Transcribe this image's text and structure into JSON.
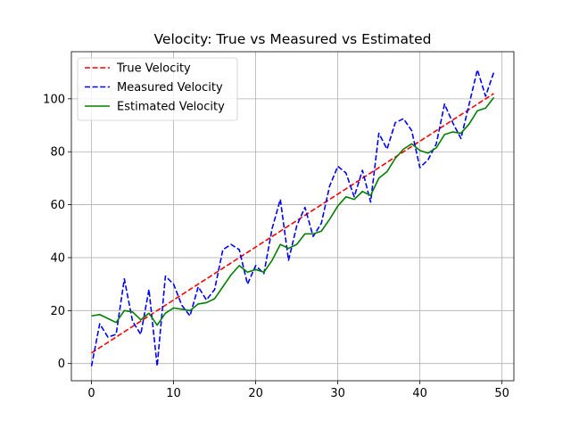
{
  "chart_data": {
    "type": "line",
    "title": "Velocity: True vs Measured vs Estimated",
    "xlabel": "",
    "ylabel": "",
    "xlim": [
      -2.45,
      51.45
    ],
    "ylim": [
      -6.5,
      117.8
    ],
    "x_ticks": [
      0,
      10,
      20,
      30,
      40,
      50
    ],
    "y_ticks": [
      0,
      20,
      40,
      60,
      80,
      100
    ],
    "grid": true,
    "legend_position": "upper-left",
    "x": [
      0,
      1,
      2,
      3,
      4,
      5,
      6,
      7,
      8,
      9,
      10,
      11,
      12,
      13,
      14,
      15,
      16,
      17,
      18,
      19,
      20,
      21,
      22,
      23,
      24,
      25,
      26,
      27,
      28,
      29,
      30,
      31,
      32,
      33,
      34,
      35,
      36,
      37,
      38,
      39,
      40,
      41,
      42,
      43,
      44,
      45,
      46,
      47,
      48,
      49
    ],
    "series": [
      {
        "name": "True Velocity",
        "color": "#ff0000",
        "style": "dashed",
        "values": [
          4,
          6,
          8,
          10,
          12,
          14,
          16,
          18,
          20,
          22,
          24,
          26,
          28,
          30,
          32,
          34,
          36,
          38,
          40,
          42,
          44,
          46,
          48,
          50,
          52,
          54,
          56,
          58,
          60,
          62,
          64,
          66,
          68,
          70,
          72,
          74,
          76,
          78,
          80,
          82,
          84,
          86,
          88,
          90,
          92,
          94,
          96,
          98,
          100,
          102
        ]
      },
      {
        "name": "Measured Velocity",
        "color": "#0000ff",
        "style": "dashed",
        "values": [
          -1,
          15,
          10,
          11,
          32,
          16,
          11,
          28,
          -1,
          33,
          30,
          22,
          18,
          29,
          24,
          28,
          43,
          45,
          43,
          30,
          37,
          34,
          51,
          62,
          39,
          52,
          59,
          48,
          53,
          67,
          74.5,
          72,
          63,
          73,
          61,
          87,
          81,
          91,
          92.5,
          88,
          74,
          77,
          83,
          98,
          91,
          85,
          98,
          111,
          101,
          110
        ]
      },
      {
        "name": "Estimated Velocity",
        "color": "#008000",
        "style": "solid",
        "values": [
          18,
          18.5,
          17,
          15.5,
          20,
          19.5,
          16.5,
          19,
          14.5,
          19,
          21,
          20.5,
          20,
          22.5,
          23,
          24.5,
          29,
          33.5,
          37,
          34.5,
          35.5,
          34.5,
          39,
          45,
          43.5,
          45,
          49,
          49,
          50,
          54.5,
          59.5,
          63,
          62,
          65,
          63.5,
          70,
          72.5,
          77.5,
          81,
          83,
          80.5,
          79.5,
          81.5,
          86.5,
          87.5,
          87,
          90.5,
          95.5,
          96.5,
          100.5
        ]
      }
    ]
  }
}
